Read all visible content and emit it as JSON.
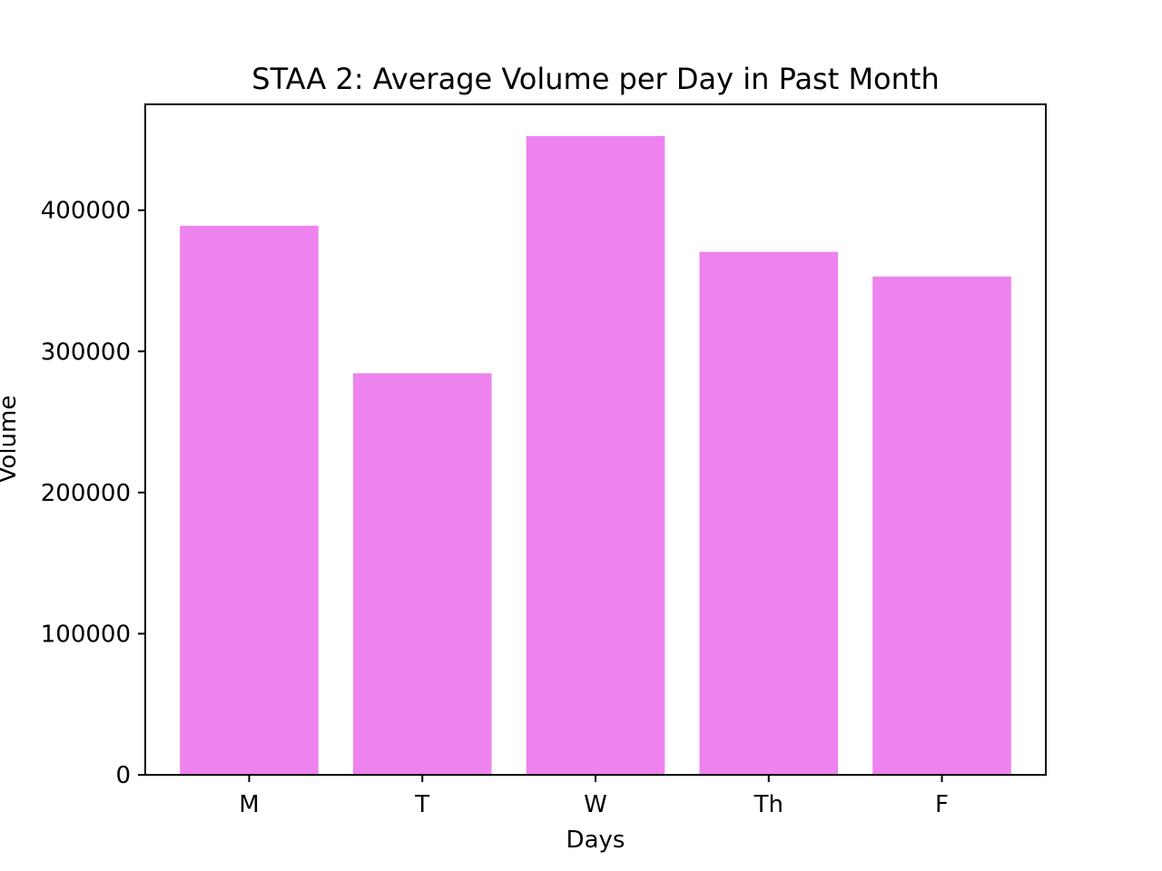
{
  "chart_data": {
    "type": "bar",
    "title": "STAA 2: Average Volume per Day in Past Month",
    "xlabel": "Days",
    "ylabel": "Volume",
    "categories": [
      "M",
      "T",
      "W",
      "Th",
      "F"
    ],
    "values": [
      389000,
      284500,
      452500,
      370500,
      353000
    ],
    "ylim": [
      0,
      475000
    ],
    "yticks": [
      0,
      100000,
      200000,
      300000,
      400000
    ],
    "ytick_labels": [
      "0",
      "100000",
      "200000",
      "300000",
      "400000"
    ],
    "bar_color": "#ee82ee",
    "grid": false,
    "legend": "none"
  }
}
